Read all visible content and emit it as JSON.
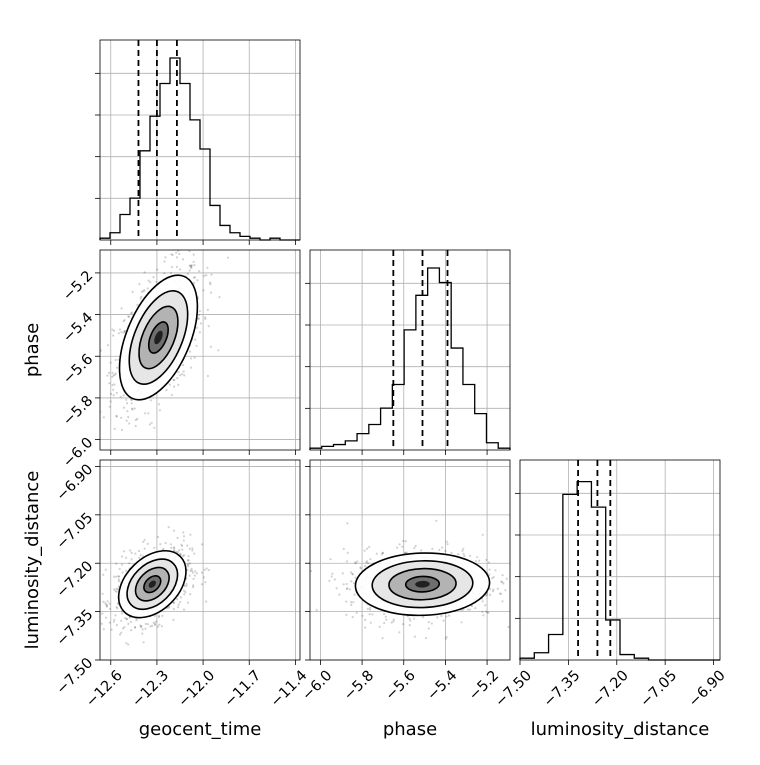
{
  "chart_data": {
    "type": "corner",
    "parameters": [
      {
        "name": "geocent_time",
        "xlabel": "geocent_time",
        "ticks": [
          -12.6,
          -12.3,
          -12.0,
          -11.7,
          -11.4
        ],
        "tick_labels": [
          "−12.6",
          "−12.3",
          "−12.0",
          "−11.7",
          "−11.4"
        ],
        "range": [
          -12.67,
          -11.37
        ],
        "quantiles": [
          -12.42,
          -12.3,
          -12.17
        ],
        "histogram": [
          0.01,
          0.04,
          0.14,
          0.23,
          0.49,
          0.68,
          0.86,
          1.0,
          0.86,
          0.66,
          0.5,
          0.19,
          0.08,
          0.04,
          0.02,
          0.01,
          0.0,
          0.01,
          0.0,
          0.0
        ]
      },
      {
        "name": "phase",
        "xlabel": "phase",
        "ylabel": "phase",
        "ticks": [
          -6.0,
          -5.8,
          -5.6,
          -5.4,
          -5.2
        ],
        "tick_labels": [
          "−6.0",
          "−5.8",
          "−5.6",
          "−5.4",
          "−5.2"
        ],
        "range": [
          -6.05,
          -5.09
        ],
        "quantiles": [
          -5.65,
          -5.51,
          -5.39
        ],
        "histogram": [
          0.01,
          0.02,
          0.03,
          0.05,
          0.09,
          0.14,
          0.23,
          0.36,
          0.66,
          0.85,
          1.0,
          0.92,
          0.56,
          0.36,
          0.2,
          0.04,
          0.01
        ]
      },
      {
        "name": "luminosity_distance",
        "xlabel": "luminosity_distance",
        "ylabel": "luminosity_distance",
        "ticks": [
          -7.5,
          -7.35,
          -7.2,
          -7.05,
          -6.9
        ],
        "tick_labels": [
          "−7.50",
          "−7.35",
          "−7.20",
          "−7.05",
          "−6.90"
        ],
        "range": [
          -7.5,
          -6.88
        ],
        "quantiles": [
          -7.32,
          -7.26,
          -7.22
        ],
        "histogram": [
          0.01,
          0.04,
          0.14,
          0.91,
          0.98,
          0.84,
          0.22,
          0.03,
          0.01,
          0.0,
          0.0,
          0.0,
          0.0,
          0.0
        ]
      }
    ],
    "hist_yticks": 4,
    "grid": true,
    "contours": [
      {
        "x": "geocent_time",
        "y": "phase",
        "center": [
          -12.29,
          -5.51
        ],
        "spread": [
          0.11,
          0.13
        ],
        "correlation": 0.5
      },
      {
        "x": "geocent_time",
        "y": "luminosity_distance",
        "center": [
          -12.33,
          -7.265
        ],
        "spread": [
          0.095,
          0.045
        ],
        "correlation": 0.38
      },
      {
        "x": "phase",
        "y": "luminosity_distance",
        "center": [
          -5.51,
          -7.265
        ],
        "spread": [
          0.14,
          0.042
        ],
        "correlation": 0.05
      }
    ]
  }
}
